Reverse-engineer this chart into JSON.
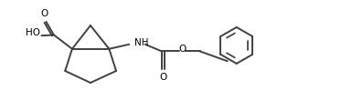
{
  "background_color": "#ffffff",
  "line_color": "#404040",
  "text_color": "#000000",
  "line_width": 1.4,
  "fig_width": 3.85,
  "fig_height": 1.21,
  "dpi": 100,
  "xlim": [
    0,
    10
  ],
  "ylim": [
    0,
    3.15
  ]
}
